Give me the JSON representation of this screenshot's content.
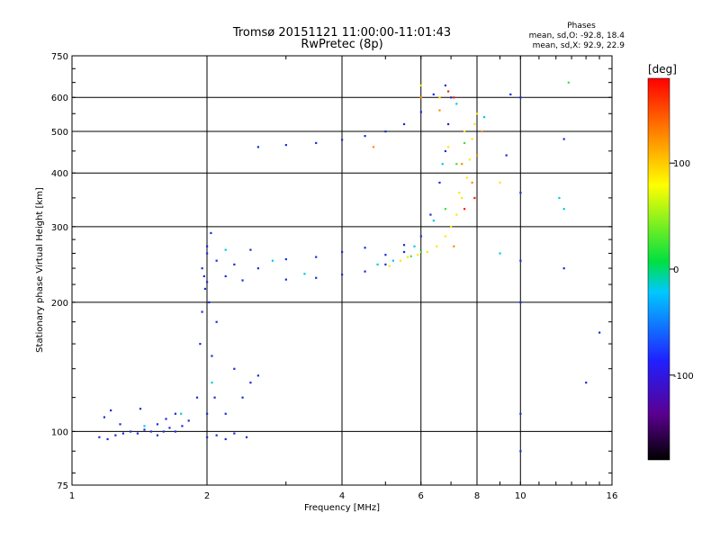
{
  "chart_data": {
    "type": "scatter",
    "title": "Tromsø 20151121 11:00:00-11:01:43",
    "subtitle": "RwPretec (8p)",
    "xlabel": "Frequency [MHz]",
    "ylabel": "Stationary phase Virtual Height [km]",
    "x_scale": "log",
    "y_scale": "log",
    "xlim": [
      1,
      16
    ],
    "ylim": [
      75,
      750
    ],
    "x_ticks": [
      1,
      2,
      4,
      6,
      8,
      10,
      16
    ],
    "y_ticks": [
      75,
      100,
      200,
      300,
      400,
      500,
      600,
      750
    ],
    "x_ticks_labelled": [
      "1",
      "2",
      "4",
      "6",
      "8",
      "10",
      "16"
    ],
    "y_ticks_labelled": [
      "75",
      "100",
      "200",
      "300",
      "400",
      "500",
      "600",
      "750"
    ],
    "x_gridlines": [
      2,
      4,
      6,
      8,
      10
    ],
    "y_gridlines": [
      100,
      200,
      300,
      400,
      500,
      600
    ],
    "grid": true,
    "phase_stats": {
      "title": "Phases",
      "o_line": "mean, sd,O: -92.8, 18.4",
      "x_line": "mean, sd,X:  92.9, 22.9"
    },
    "colorbar": {
      "label": "[deg]",
      "ticks": [
        100,
        0,
        -100
      ],
      "tick_labels": [
        "100",
        "0",
        "-100"
      ],
      "range": [
        -180,
        180
      ],
      "colors_bottom_to_top": [
        "#000000",
        "#5a0090",
        "#2020ff",
        "#00c8ff",
        "#00e040",
        "#ffff00",
        "#ff8000",
        "#ff0000"
      ]
    },
    "series": [
      {
        "color": "#1a2adc",
        "points": [
          [
            1.15,
            97
          ],
          [
            1.2,
            96
          ],
          [
            1.25,
            98
          ],
          [
            1.3,
            99
          ],
          [
            1.35,
            100
          ],
          [
            1.4,
            99
          ],
          [
            1.45,
            101
          ],
          [
            1.5,
            100
          ],
          [
            1.55,
            98
          ],
          [
            1.6,
            100
          ],
          [
            1.65,
            102
          ],
          [
            1.7,
            100
          ],
          [
            1.18,
            108
          ],
          [
            1.22,
            112
          ],
          [
            1.28,
            104
          ],
          [
            1.42,
            113
          ],
          [
            1.55,
            104
          ],
          [
            1.62,
            107
          ],
          [
            1.7,
            110
          ],
          [
            1.76,
            103
          ],
          [
            1.82,
            106
          ],
          [
            1.9,
            120
          ],
          [
            1.93,
            160
          ],
          [
            1.95,
            190
          ],
          [
            1.97,
            230
          ],
          [
            2.0,
            260
          ],
          [
            2.02,
            200
          ],
          [
            2.05,
            150
          ],
          [
            2.08,
            120
          ],
          [
            2.1,
            180
          ],
          [
            1.98,
            215
          ],
          [
            2.0,
            110
          ],
          [
            2.04,
            290
          ],
          [
            2.0,
            97
          ],
          [
            2.1,
            98
          ],
          [
            2.2,
            96
          ],
          [
            2.3,
            99
          ],
          [
            2.45,
            97
          ],
          [
            2.3,
            140
          ],
          [
            2.4,
            120
          ],
          [
            2.5,
            130
          ],
          [
            2.6,
            135
          ],
          [
            2.2,
            110
          ],
          [
            1.95,
            240
          ],
          [
            2.0,
            270
          ],
          [
            2.1,
            250
          ],
          [
            2.3,
            245
          ],
          [
            2.6,
            240
          ],
          [
            3.0,
            252
          ],
          [
            3.5,
            255
          ],
          [
            4.0,
            262
          ],
          [
            4.5,
            268
          ],
          [
            5.0,
            258
          ],
          [
            5.5,
            272
          ],
          [
            2.2,
            230
          ],
          [
            2.5,
            265
          ],
          [
            2.0,
            223
          ],
          [
            2.4,
            225
          ],
          [
            3.0,
            226
          ],
          [
            3.5,
            228
          ],
          [
            4.0,
            232
          ],
          [
            4.5,
            236
          ],
          [
            5.0,
            245
          ],
          [
            5.5,
            262
          ],
          [
            6.0,
            285
          ],
          [
            6.3,
            320
          ],
          [
            6.6,
            380
          ],
          [
            6.8,
            450
          ],
          [
            6.9,
            520
          ],
          [
            7.0,
            600
          ],
          [
            2.6,
            460
          ],
          [
            3.0,
            465
          ],
          [
            3.5,
            470
          ],
          [
            4.0,
            478
          ],
          [
            4.5,
            488
          ],
          [
            5.0,
            500
          ],
          [
            5.5,
            520
          ],
          [
            6.0,
            555
          ],
          [
            6.4,
            610
          ],
          [
            6.8,
            640
          ],
          [
            10.0,
            600
          ],
          [
            10.0,
            250
          ],
          [
            10.0,
            200
          ],
          [
            10.0,
            110
          ],
          [
            10.0,
            90
          ],
          [
            10.0,
            360
          ],
          [
            9.5,
            610
          ],
          [
            12.5,
            480
          ],
          [
            12.5,
            240
          ],
          [
            14.0,
            130
          ],
          [
            15.0,
            170
          ],
          [
            9.3,
            440
          ]
        ]
      },
      {
        "color": "#00c8e8",
        "points": [
          [
            1.45,
            103
          ],
          [
            1.75,
            110
          ],
          [
            2.05,
            130
          ],
          [
            2.2,
            265
          ],
          [
            2.8,
            250
          ],
          [
            3.3,
            233
          ],
          [
            4.8,
            245
          ],
          [
            5.2,
            250
          ],
          [
            5.8,
            270
          ],
          [
            6.4,
            310
          ],
          [
            6.7,
            420
          ],
          [
            7.2,
            580
          ],
          [
            8.3,
            540
          ],
          [
            12.5,
            330
          ],
          [
            12.2,
            350
          ],
          [
            9.0,
            260
          ]
        ]
      },
      {
        "color": "#40e040",
        "points": [
          [
            5.7,
            256
          ],
          [
            6.0,
            262
          ],
          [
            6.8,
            330
          ],
          [
            7.2,
            420
          ],
          [
            7.5,
            470
          ],
          [
            12.8,
            650
          ]
        ]
      },
      {
        "color": "#ffe600",
        "points": [
          [
            5.6,
            255
          ],
          [
            5.9,
            258
          ],
          [
            6.2,
            262
          ],
          [
            6.5,
            270
          ],
          [
            6.8,
            285
          ],
          [
            7.0,
            300
          ],
          [
            7.2,
            320
          ],
          [
            7.4,
            350
          ],
          [
            7.6,
            390
          ],
          [
            7.7,
            430
          ],
          [
            7.8,
            480
          ],
          [
            7.9,
            520
          ],
          [
            8.0,
            550
          ],
          [
            7.5,
            500
          ],
          [
            6.6,
            600
          ],
          [
            6.9,
            460
          ],
          [
            7.3,
            360
          ],
          [
            5.4,
            250
          ],
          [
            5.1,
            243
          ],
          [
            6.0,
            640
          ],
          [
            9.0,
            380
          ]
        ]
      },
      {
        "color": "#ff8c00",
        "points": [
          [
            6.0,
            600
          ],
          [
            6.6,
            560
          ],
          [
            7.4,
            420
          ],
          [
            7.8,
            380
          ],
          [
            8.0,
            440
          ],
          [
            8.2,
            500
          ],
          [
            4.7,
            460
          ],
          [
            7.1,
            270
          ]
        ]
      },
      {
        "color": "#ff1a00",
        "points": [
          [
            6.9,
            620
          ],
          [
            7.1,
            600
          ],
          [
            7.5,
            330
          ],
          [
            7.9,
            350
          ]
        ]
      }
    ]
  }
}
